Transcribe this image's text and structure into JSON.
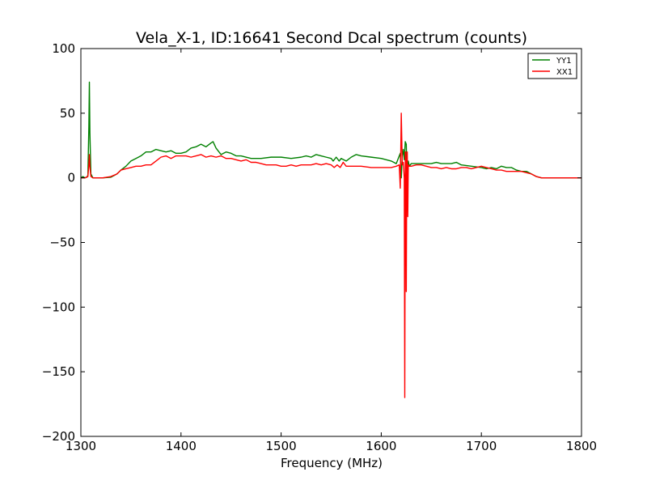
{
  "chart_data": {
    "type": "line",
    "title": "Vela_X-1, ID:16641 Second Dcal spectrum (counts)",
    "xlabel": "Frequency (MHz)",
    "ylabel": "",
    "xlim": [
      1300,
      1800
    ],
    "ylim": [
      -200,
      100
    ],
    "xticks": [
      1300,
      1400,
      1500,
      1600,
      1700,
      1800
    ],
    "xtick_labels": [
      "1300",
      "1400",
      "1500",
      "1600",
      "1700",
      "1800"
    ],
    "yticks": [
      -200,
      -150,
      -100,
      -50,
      0,
      50,
      100
    ],
    "ytick_labels": [
      "−200",
      "−150",
      "−100",
      "−50",
      "0",
      "50",
      "100"
    ],
    "grid": false,
    "legend_position": "upper right",
    "series": [
      {
        "name": "YY1",
        "color": "#008000",
        "points": [
          [
            1300,
            0
          ],
          [
            1302,
            1
          ],
          [
            1304,
            0
          ],
          [
            1306,
            0.5
          ],
          [
            1307,
            2
          ],
          [
            1308,
            40
          ],
          [
            1308.5,
            74
          ],
          [
            1309,
            35
          ],
          [
            1310,
            3
          ],
          [
            1312,
            0
          ],
          [
            1316,
            0
          ],
          [
            1322,
            0
          ],
          [
            1330,
            0.5
          ],
          [
            1336,
            3
          ],
          [
            1340,
            6
          ],
          [
            1345,
            9
          ],
          [
            1350,
            13
          ],
          [
            1355,
            15
          ],
          [
            1360,
            17
          ],
          [
            1365,
            20
          ],
          [
            1370,
            20
          ],
          [
            1375,
            22
          ],
          [
            1380,
            21
          ],
          [
            1385,
            20
          ],
          [
            1390,
            21
          ],
          [
            1395,
            19
          ],
          [
            1400,
            19
          ],
          [
            1405,
            20
          ],
          [
            1410,
            23
          ],
          [
            1415,
            24
          ],
          [
            1420,
            26
          ],
          [
            1425,
            24
          ],
          [
            1430,
            27
          ],
          [
            1432,
            28
          ],
          [
            1435,
            23
          ],
          [
            1440,
            18
          ],
          [
            1445,
            20
          ],
          [
            1450,
            19
          ],
          [
            1455,
            17
          ],
          [
            1460,
            17
          ],
          [
            1470,
            15
          ],
          [
            1480,
            15
          ],
          [
            1490,
            16
          ],
          [
            1500,
            16
          ],
          [
            1510,
            15
          ],
          [
            1520,
            16
          ],
          [
            1525,
            17
          ],
          [
            1530,
            16
          ],
          [
            1535,
            18
          ],
          [
            1540,
            17
          ],
          [
            1545,
            16
          ],
          [
            1550,
            15
          ],
          [
            1552,
            13
          ],
          [
            1555,
            16
          ],
          [
            1558,
            13
          ],
          [
            1560,
            15
          ],
          [
            1565,
            13
          ],
          [
            1570,
            16
          ],
          [
            1575,
            18
          ],
          [
            1580,
            17
          ],
          [
            1590,
            16
          ],
          [
            1600,
            15
          ],
          [
            1610,
            13
          ],
          [
            1615,
            11
          ],
          [
            1619,
            19
          ],
          [
            1620,
            0
          ],
          [
            1621,
            17
          ],
          [
            1622,
            22
          ],
          [
            1623,
            14
          ],
          [
            1624,
            28
          ],
          [
            1625,
            26
          ],
          [
            1626,
            -10
          ],
          [
            1627,
            13
          ],
          [
            1628,
            9
          ],
          [
            1630,
            11
          ],
          [
            1640,
            11
          ],
          [
            1650,
            11
          ],
          [
            1655,
            12
          ],
          [
            1660,
            11
          ],
          [
            1670,
            11
          ],
          [
            1675,
            12
          ],
          [
            1680,
            10
          ],
          [
            1690,
            9
          ],
          [
            1700,
            8
          ],
          [
            1705,
            7
          ],
          [
            1710,
            8
          ],
          [
            1715,
            7
          ],
          [
            1720,
            9
          ],
          [
            1725,
            8
          ],
          [
            1730,
            8
          ],
          [
            1735,
            6
          ],
          [
            1740,
            5
          ],
          [
            1745,
            5
          ],
          [
            1750,
            3
          ],
          [
            1755,
            1
          ],
          [
            1760,
            0
          ],
          [
            1770,
            0
          ],
          [
            1780,
            0
          ],
          [
            1790,
            0
          ],
          [
            1800,
            0
          ]
        ]
      },
      {
        "name": "XX1",
        "color": "#ff0000",
        "points": [
          [
            1300,
            0
          ],
          [
            1304,
            0
          ],
          [
            1307,
            1
          ],
          [
            1308,
            10
          ],
          [
            1308.5,
            18
          ],
          [
            1309,
            9
          ],
          [
            1310,
            1
          ],
          [
            1312,
            0
          ],
          [
            1316,
            0
          ],
          [
            1322,
            0
          ],
          [
            1330,
            1
          ],
          [
            1336,
            3
          ],
          [
            1340,
            6
          ],
          [
            1345,
            7
          ],
          [
            1350,
            8
          ],
          [
            1355,
            9
          ],
          [
            1360,
            9
          ],
          [
            1365,
            10
          ],
          [
            1370,
            10
          ],
          [
            1375,
            13
          ],
          [
            1380,
            16
          ],
          [
            1385,
            17
          ],
          [
            1390,
            15
          ],
          [
            1395,
            17
          ],
          [
            1400,
            17
          ],
          [
            1405,
            17
          ],
          [
            1410,
            16
          ],
          [
            1415,
            17
          ],
          [
            1420,
            18
          ],
          [
            1425,
            16
          ],
          [
            1430,
            17
          ],
          [
            1435,
            16
          ],
          [
            1440,
            17
          ],
          [
            1445,
            15
          ],
          [
            1450,
            15
          ],
          [
            1455,
            14
          ],
          [
            1460,
            13
          ],
          [
            1465,
            14
          ],
          [
            1470,
            12
          ],
          [
            1475,
            12
          ],
          [
            1480,
            11
          ],
          [
            1485,
            10
          ],
          [
            1490,
            10
          ],
          [
            1495,
            10
          ],
          [
            1500,
            9
          ],
          [
            1505,
            9
          ],
          [
            1510,
            10
          ],
          [
            1515,
            9
          ],
          [
            1520,
            10
          ],
          [
            1525,
            10
          ],
          [
            1530,
            10
          ],
          [
            1535,
            11
          ],
          [
            1540,
            10
          ],
          [
            1545,
            11
          ],
          [
            1550,
            10
          ],
          [
            1553,
            8
          ],
          [
            1556,
            10
          ],
          [
            1559,
            8
          ],
          [
            1562,
            12
          ],
          [
            1565,
            9
          ],
          [
            1570,
            9
          ],
          [
            1580,
            9
          ],
          [
            1590,
            8
          ],
          [
            1600,
            8
          ],
          [
            1605,
            8
          ],
          [
            1610,
            8
          ],
          [
            1615,
            9
          ],
          [
            1618,
            10
          ],
          [
            1619,
            -8
          ],
          [
            1620,
            50
          ],
          [
            1621,
            10
          ],
          [
            1622,
            12
          ],
          [
            1623,
            0
          ],
          [
            1623.5,
            -170
          ],
          [
            1624,
            20
          ],
          [
            1624.5,
            20
          ],
          [
            1625,
            -88
          ],
          [
            1625.5,
            10
          ],
          [
            1626,
            20
          ],
          [
            1626.5,
            -30
          ],
          [
            1627,
            10
          ],
          [
            1628,
            9
          ],
          [
            1630,
            9
          ],
          [
            1635,
            10
          ],
          [
            1640,
            10
          ],
          [
            1645,
            9
          ],
          [
            1650,
            8
          ],
          [
            1655,
            8
          ],
          [
            1660,
            7
          ],
          [
            1665,
            8
          ],
          [
            1670,
            7
          ],
          [
            1675,
            7
          ],
          [
            1680,
            8
          ],
          [
            1685,
            8
          ],
          [
            1690,
            7
          ],
          [
            1695,
            8
          ],
          [
            1700,
            9
          ],
          [
            1705,
            8
          ],
          [
            1710,
            7
          ],
          [
            1715,
            6
          ],
          [
            1720,
            6
          ],
          [
            1725,
            5
          ],
          [
            1730,
            5
          ],
          [
            1735,
            5
          ],
          [
            1740,
            5
          ],
          [
            1745,
            4
          ],
          [
            1750,
            3
          ],
          [
            1755,
            1
          ],
          [
            1760,
            0
          ],
          [
            1770,
            0
          ],
          [
            1780,
            0
          ],
          [
            1790,
            0
          ],
          [
            1800,
            0
          ]
        ]
      }
    ]
  }
}
